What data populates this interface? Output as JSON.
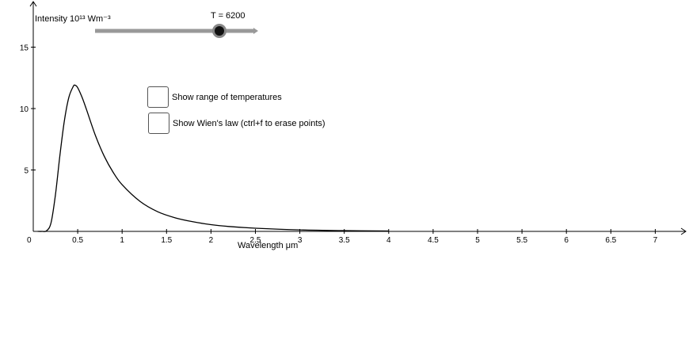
{
  "slider": {
    "label": "T = 6200",
    "value": 6200
  },
  "checkboxes": [
    {
      "label": "Show range of temperatures",
      "checked": false
    },
    {
      "label": "Show Wien's law (ctrl+f to erase points)",
      "checked": false
    }
  ],
  "chart_data": {
    "type": "line",
    "ylabel": "Intensity 10¹³ Wm⁻³",
    "xlabel": "Wavelength μm",
    "xlim": [
      0,
      7.3
    ],
    "ylim": [
      0,
      17.6
    ],
    "x_ticks": [
      0,
      0.5,
      1,
      1.5,
      2,
      2.5,
      3,
      3.5,
      4,
      4.5,
      5,
      5.5,
      6,
      6.5,
      7
    ],
    "x_tick_labels": [
      "0",
      "0.5",
      "1",
      "1.5",
      "2",
      "2.5",
      "3",
      "3.5",
      "4",
      "4.5",
      "5",
      "5.5",
      "6",
      "6.5",
      "7"
    ],
    "y_ticks": [
      5,
      10,
      15
    ],
    "y_tick_labels": [
      "5",
      "10",
      "15"
    ],
    "series": [
      {
        "x": [
          0.05,
          0.1,
          0.15,
          0.2,
          0.25,
          0.3,
          0.35,
          0.4,
          0.45,
          0.47,
          0.5,
          0.55,
          0.6,
          0.7,
          0.8,
          0.9,
          1.0,
          1.2,
          1.4,
          1.6,
          1.8,
          2.0,
          2.2,
          2.5,
          3.0,
          3.5,
          4.0
        ],
        "y": [
          0.0,
          0.0,
          0.05,
          0.7,
          3.0,
          6.2,
          9.0,
          10.9,
          11.8,
          11.9,
          11.7,
          10.9,
          9.9,
          7.8,
          6.1,
          4.8,
          3.8,
          2.45,
          1.6,
          1.1,
          0.78,
          0.55,
          0.4,
          0.26,
          0.12,
          0.06,
          0.03
        ]
      }
    ],
    "grid": false
  }
}
